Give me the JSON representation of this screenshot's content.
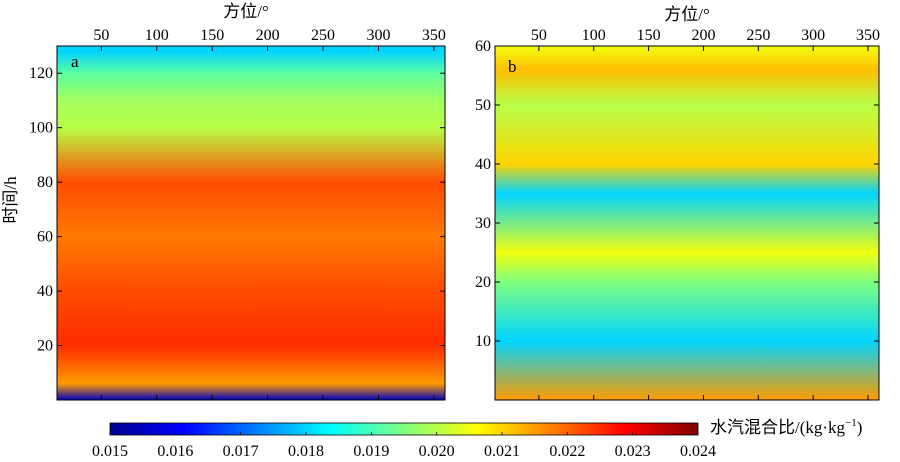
{
  "chart_data": [
    {
      "type": "heatmap",
      "panel_label": "a",
      "xlabel": "方位/°",
      "ylabel": "时间/h",
      "xlim": [
        10,
        360
      ],
      "ylim": [
        0,
        130
      ],
      "xticks": [
        50,
        100,
        150,
        200,
        250,
        300,
        350
      ],
      "yticks": [
        20,
        40,
        60,
        80,
        100,
        120
      ],
      "z_bands": [
        {
          "t": 0,
          "value": 0.0155
        },
        {
          "t": 6,
          "value": 0.0215
        },
        {
          "t": 20,
          "value": 0.0225
        },
        {
          "t": 40,
          "value": 0.0222
        },
        {
          "t": 60,
          "value": 0.0218
        },
        {
          "t": 80,
          "value": 0.0222
        },
        {
          "t": 100,
          "value": 0.02
        },
        {
          "t": 110,
          "value": 0.0198
        },
        {
          "t": 120,
          "value": 0.0192
        },
        {
          "t": 128,
          "value": 0.018
        }
      ]
    },
    {
      "type": "heatmap",
      "panel_label": "b",
      "xlabel": "方位/°",
      "ylabel": "",
      "xlim": [
        10,
        360
      ],
      "ylim": [
        0,
        60
      ],
      "xticks": [
        50,
        100,
        150,
        200,
        250,
        300,
        350
      ],
      "yticks": [
        10,
        20,
        30,
        40,
        50,
        60
      ],
      "z_bands": [
        {
          "t": 0,
          "value": 0.0215
        },
        {
          "t": 10,
          "value": 0.018
        },
        {
          "t": 20,
          "value": 0.0195
        },
        {
          "t": 25,
          "value": 0.0205
        },
        {
          "t": 35,
          "value": 0.018
        },
        {
          "t": 40,
          "value": 0.021
        },
        {
          "t": 50,
          "value": 0.02
        },
        {
          "t": 56,
          "value": 0.0212
        },
        {
          "t": 60,
          "value": 0.0205
        }
      ]
    }
  ],
  "colorbar": {
    "label": "水汽混合比/(kg·kg",
    "label_sup": "−1",
    "label_close": ")",
    "range": [
      0.015,
      0.024
    ],
    "ticks": [
      "0.015",
      "0.016",
      "0.017",
      "0.018",
      "0.019",
      "0.020",
      "0.021",
      "0.022",
      "0.023",
      "0.024"
    ],
    "colormap": "jet"
  }
}
